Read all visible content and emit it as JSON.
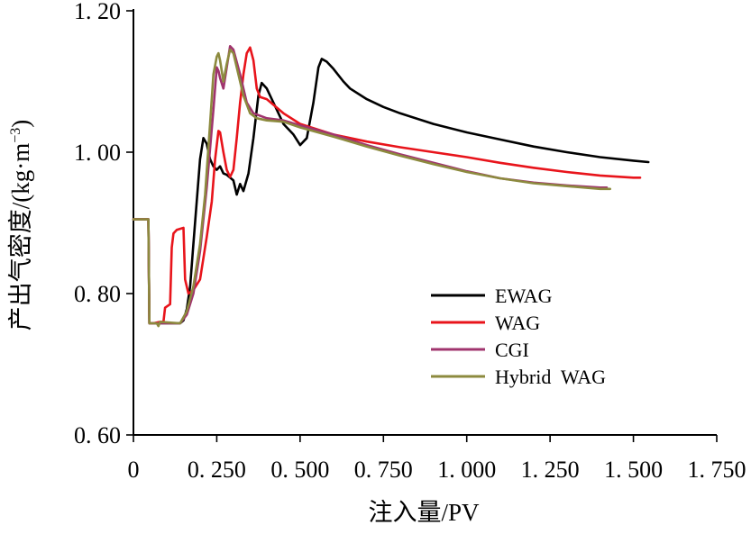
{
  "chart_data": {
    "type": "line",
    "title": "",
    "xlabel": "注入量/PV",
    "ylabel_main": "产出气密度/",
    "ylabel_unit": "(kg·m",
    "ylabel_unit_sup": "−3",
    "ylabel_unit_close": ")",
    "xlim": [
      0,
      1.75
    ],
    "ylim": [
      0.6,
      1.2
    ],
    "x_ticks": [
      0,
      0.25,
      0.5,
      0.75,
      1.0,
      1.25,
      1.5,
      1.75
    ],
    "x_tick_labels": [
      "0",
      "0. 250",
      "0. 500",
      "0. 750",
      "1. 000",
      "1. 250",
      "1. 500",
      "1. 750"
    ],
    "y_ticks": [
      0.6,
      0.8,
      1.0,
      1.2
    ],
    "y_tick_labels": [
      "0. 60",
      "0. 80",
      "1. 00",
      "1. 20"
    ],
    "grid": false,
    "legend_position": "center-right",
    "series": [
      {
        "name": "EWAG",
        "color": "#000000",
        "points": [
          [
            0,
            0.905
          ],
          [
            0.045,
            0.905
          ],
          [
            0.048,
            0.758
          ],
          [
            0.08,
            0.758
          ],
          [
            0.14,
            0.758
          ],
          [
            0.15,
            0.762
          ],
          [
            0.16,
            0.778
          ],
          [
            0.17,
            0.81
          ],
          [
            0.18,
            0.87
          ],
          [
            0.19,
            0.93
          ],
          [
            0.2,
            0.99
          ],
          [
            0.21,
            1.02
          ],
          [
            0.22,
            1.012
          ],
          [
            0.23,
            0.99
          ],
          [
            0.24,
            0.98
          ],
          [
            0.25,
            0.975
          ],
          [
            0.26,
            0.98
          ],
          [
            0.27,
            0.97
          ],
          [
            0.28,
            0.968
          ],
          [
            0.3,
            0.96
          ],
          [
            0.31,
            0.94
          ],
          [
            0.32,
            0.955
          ],
          [
            0.33,
            0.945
          ],
          [
            0.345,
            0.97
          ],
          [
            0.36,
            1.02
          ],
          [
            0.375,
            1.08
          ],
          [
            0.385,
            1.098
          ],
          [
            0.4,
            1.09
          ],
          [
            0.42,
            1.07
          ],
          [
            0.45,
            1.04
          ],
          [
            0.48,
            1.025
          ],
          [
            0.5,
            1.01
          ],
          [
            0.52,
            1.02
          ],
          [
            0.54,
            1.07
          ],
          [
            0.555,
            1.12
          ],
          [
            0.565,
            1.132
          ],
          [
            0.58,
            1.128
          ],
          [
            0.6,
            1.118
          ],
          [
            0.63,
            1.1
          ],
          [
            0.65,
            1.09
          ],
          [
            0.7,
            1.075
          ],
          [
            0.75,
            1.064
          ],
          [
            0.8,
            1.055
          ],
          [
            0.9,
            1.04
          ],
          [
            1.0,
            1.028
          ],
          [
            1.1,
            1.018
          ],
          [
            1.2,
            1.008
          ],
          [
            1.3,
            1.0
          ],
          [
            1.4,
            0.993
          ],
          [
            1.5,
            0.988
          ],
          [
            1.545,
            0.986
          ]
        ]
      },
      {
        "name": "WAG",
        "color": "#e8141b",
        "points": [
          [
            0,
            0.905
          ],
          [
            0.045,
            0.905
          ],
          [
            0.048,
            0.758
          ],
          [
            0.06,
            0.758
          ],
          [
            0.08,
            0.76
          ],
          [
            0.09,
            0.76
          ],
          [
            0.095,
            0.78
          ],
          [
            0.11,
            0.785
          ],
          [
            0.115,
            0.865
          ],
          [
            0.12,
            0.885
          ],
          [
            0.13,
            0.89
          ],
          [
            0.15,
            0.893
          ],
          [
            0.155,
            0.82
          ],
          [
            0.165,
            0.8
          ],
          [
            0.18,
            0.805
          ],
          [
            0.2,
            0.82
          ],
          [
            0.21,
            0.85
          ],
          [
            0.22,
            0.88
          ],
          [
            0.235,
            0.93
          ],
          [
            0.245,
            0.99
          ],
          [
            0.255,
            1.03
          ],
          [
            0.26,
            1.028
          ],
          [
            0.27,
            1.0
          ],
          [
            0.28,
            0.975
          ],
          [
            0.29,
            0.965
          ],
          [
            0.3,
            0.975
          ],
          [
            0.31,
            1.02
          ],
          [
            0.32,
            1.07
          ],
          [
            0.33,
            1.11
          ],
          [
            0.34,
            1.14
          ],
          [
            0.35,
            1.148
          ],
          [
            0.36,
            1.13
          ],
          [
            0.37,
            1.09
          ],
          [
            0.38,
            1.078
          ],
          [
            0.4,
            1.075
          ],
          [
            0.45,
            1.055
          ],
          [
            0.5,
            1.04
          ],
          [
            0.6,
            1.025
          ],
          [
            0.7,
            1.015
          ],
          [
            0.8,
            1.007
          ],
          [
            0.9,
            1.0
          ],
          [
            1.0,
            0.993
          ],
          [
            1.1,
            0.985
          ],
          [
            1.2,
            0.978
          ],
          [
            1.3,
            0.972
          ],
          [
            1.4,
            0.967
          ],
          [
            1.5,
            0.964
          ],
          [
            1.52,
            0.964
          ]
        ]
      },
      {
        "name": "CGI",
        "color": "#a0346e",
        "points": [
          [
            0,
            0.905
          ],
          [
            0.045,
            0.905
          ],
          [
            0.048,
            0.758
          ],
          [
            0.08,
            0.758
          ],
          [
            0.14,
            0.758
          ],
          [
            0.16,
            0.77
          ],
          [
            0.18,
            0.8
          ],
          [
            0.2,
            0.86
          ],
          [
            0.22,
            0.95
          ],
          [
            0.24,
            1.06
          ],
          [
            0.25,
            1.12
          ],
          [
            0.255,
            1.115
          ],
          [
            0.26,
            1.105
          ],
          [
            0.27,
            1.09
          ],
          [
            0.28,
            1.12
          ],
          [
            0.29,
            1.15
          ],
          [
            0.3,
            1.145
          ],
          [
            0.32,
            1.11
          ],
          [
            0.34,
            1.07
          ],
          [
            0.36,
            1.055
          ],
          [
            0.4,
            1.048
          ],
          [
            0.45,
            1.045
          ],
          [
            0.5,
            1.038
          ],
          [
            0.6,
            1.025
          ],
          [
            0.7,
            1.01
          ],
          [
            0.8,
            0.997
          ],
          [
            0.9,
            0.985
          ],
          [
            1.0,
            0.973
          ],
          [
            1.1,
            0.963
          ],
          [
            1.2,
            0.957
          ],
          [
            1.3,
            0.953
          ],
          [
            1.4,
            0.95
          ],
          [
            1.42,
            0.95
          ]
        ]
      },
      {
        "name": "Hybrid  WAG",
        "color": "#8c8a3e",
        "points": [
          [
            0,
            0.905
          ],
          [
            0.045,
            0.905
          ],
          [
            0.048,
            0.758
          ],
          [
            0.07,
            0.758
          ],
          [
            0.075,
            0.754
          ],
          [
            0.08,
            0.76
          ],
          [
            0.14,
            0.758
          ],
          [
            0.16,
            0.775
          ],
          [
            0.18,
            0.81
          ],
          [
            0.2,
            0.87
          ],
          [
            0.215,
            0.94
          ],
          [
            0.23,
            1.04
          ],
          [
            0.24,
            1.11
          ],
          [
            0.25,
            1.135
          ],
          [
            0.255,
            1.14
          ],
          [
            0.26,
            1.13
          ],
          [
            0.27,
            1.1
          ],
          [
            0.28,
            1.125
          ],
          [
            0.29,
            1.145
          ],
          [
            0.3,
            1.14
          ],
          [
            0.31,
            1.12
          ],
          [
            0.33,
            1.08
          ],
          [
            0.35,
            1.055
          ],
          [
            0.37,
            1.048
          ],
          [
            0.4,
            1.045
          ],
          [
            0.45,
            1.043
          ],
          [
            0.5,
            1.035
          ],
          [
            0.6,
            1.022
          ],
          [
            0.7,
            1.008
          ],
          [
            0.8,
            0.995
          ],
          [
            0.9,
            0.983
          ],
          [
            1.0,
            0.972
          ],
          [
            1.1,
            0.963
          ],
          [
            1.2,
            0.956
          ],
          [
            1.3,
            0.952
          ],
          [
            1.4,
            0.948
          ],
          [
            1.43,
            0.948
          ]
        ]
      }
    ]
  }
}
